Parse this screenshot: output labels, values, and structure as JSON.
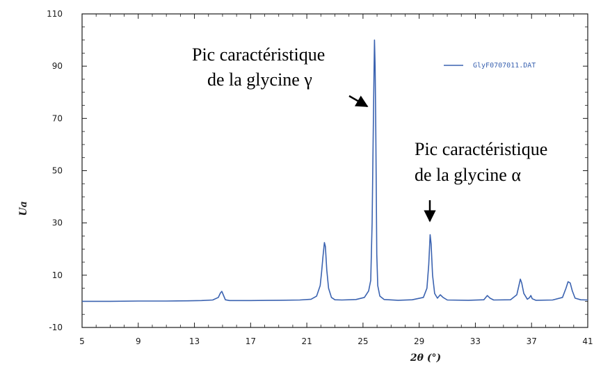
{
  "colors": {
    "series": "#3a62b0",
    "axis": "#1a1a1a"
  },
  "chart_data": {
    "type": "line",
    "xlabel": "2θ (°)",
    "ylabel": "Ua",
    "xlim": [
      5,
      41
    ],
    "ylim": [
      -10,
      110
    ],
    "xticks": [
      5,
      9,
      13,
      17,
      21,
      25,
      29,
      33,
      37,
      41
    ],
    "yticks": [
      -10,
      10,
      30,
      50,
      70,
      90,
      110
    ],
    "grid": false,
    "legend_position": "top-right",
    "series": [
      {
        "name": "GlyF0707011.DAT",
        "color": "#3a62b0",
        "points": [
          [
            5,
            0
          ],
          [
            7,
            0
          ],
          [
            9,
            0.1
          ],
          [
            11,
            0.1
          ],
          [
            12.5,
            0.2
          ],
          [
            13.5,
            0.3
          ],
          [
            14.3,
            0.5
          ],
          [
            14.7,
            1.5
          ],
          [
            14.85,
            3.2
          ],
          [
            14.95,
            3.8
          ],
          [
            15.05,
            2.5
          ],
          [
            15.2,
            0.6
          ],
          [
            15.5,
            0.3
          ],
          [
            17,
            0.3
          ],
          [
            19,
            0.4
          ],
          [
            20.5,
            0.5
          ],
          [
            21.3,
            0.8
          ],
          [
            21.7,
            2
          ],
          [
            21.95,
            6
          ],
          [
            22.05,
            11
          ],
          [
            22.15,
            17
          ],
          [
            22.25,
            22.5
          ],
          [
            22.32,
            21
          ],
          [
            22.42,
            12
          ],
          [
            22.55,
            5
          ],
          [
            22.75,
            1.5
          ],
          [
            23,
            0.6
          ],
          [
            23.5,
            0.5
          ],
          [
            24.5,
            0.7
          ],
          [
            25.1,
            1.5
          ],
          [
            25.4,
            4
          ],
          [
            25.55,
            8
          ],
          [
            25.65,
            30
          ],
          [
            25.72,
            60
          ],
          [
            25.78,
            85
          ],
          [
            25.82,
            100
          ],
          [
            25.86,
            90
          ],
          [
            25.9,
            71
          ],
          [
            25.94,
            45
          ],
          [
            25.98,
            18
          ],
          [
            26.05,
            6
          ],
          [
            26.2,
            2
          ],
          [
            26.5,
            0.7
          ],
          [
            27.5,
            0.4
          ],
          [
            28.5,
            0.6
          ],
          [
            29.3,
            1.5
          ],
          [
            29.55,
            5
          ],
          [
            29.68,
            14
          ],
          [
            29.78,
            25.5
          ],
          [
            29.85,
            22
          ],
          [
            29.95,
            10
          ],
          [
            30.1,
            3
          ],
          [
            30.3,
            1.2
          ],
          [
            30.5,
            2.5
          ],
          [
            30.7,
            1.5
          ],
          [
            31,
            0.5
          ],
          [
            32.5,
            0.4
          ],
          [
            33.6,
            0.6
          ],
          [
            33.85,
            2.2
          ],
          [
            34.05,
            1.2
          ],
          [
            34.3,
            0.5
          ],
          [
            35.5,
            0.6
          ],
          [
            35.95,
            2.5
          ],
          [
            36.1,
            6
          ],
          [
            36.2,
            8.5
          ],
          [
            36.3,
            7
          ],
          [
            36.45,
            3
          ],
          [
            36.7,
            0.8
          ],
          [
            36.85,
            1.4
          ],
          [
            36.95,
            2.2
          ],
          [
            37.05,
            1
          ],
          [
            37.3,
            0.4
          ],
          [
            38.5,
            0.5
          ],
          [
            39.2,
            1.5
          ],
          [
            39.45,
            5
          ],
          [
            39.6,
            7.5
          ],
          [
            39.75,
            7
          ],
          [
            39.9,
            4
          ],
          [
            40.1,
            1.2
          ],
          [
            40.5,
            0.6
          ],
          [
            41,
            0.5
          ]
        ]
      }
    ],
    "annotations": [
      {
        "lines": [
          "Pic caractéristique",
          "de la glycine γ"
        ],
        "target": [
          25.82,
          72
        ]
      },
      {
        "lines": [
          "Pic caractéristique",
          "de la glycine α"
        ],
        "target": [
          29.8,
          27
        ]
      }
    ]
  }
}
